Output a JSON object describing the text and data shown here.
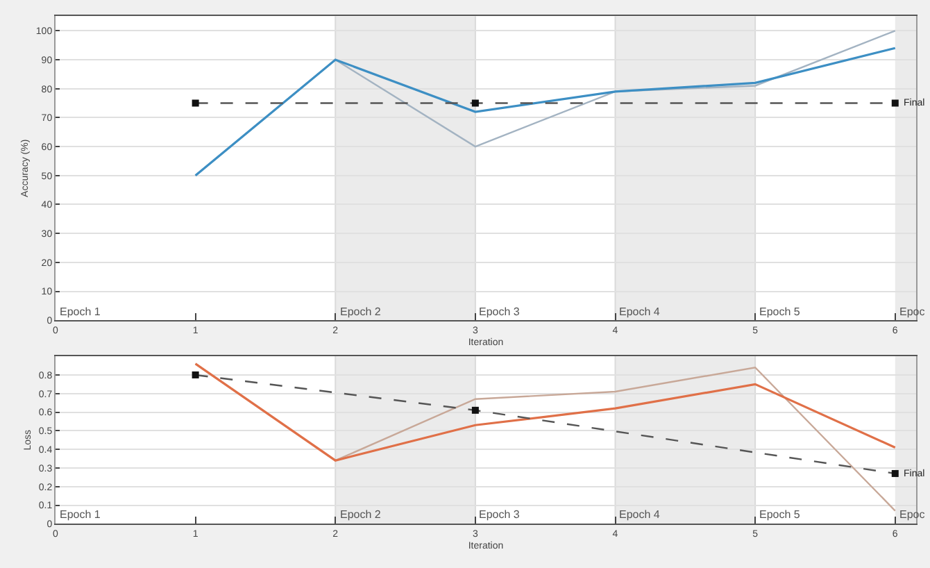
{
  "chart_data": [
    {
      "type": "line",
      "xlabel": "Iteration",
      "ylabel": "Accuracy (%)",
      "xlim": [
        0,
        6.15
      ],
      "xticks": [
        0,
        1,
        2,
        3,
        4,
        5,
        6
      ],
      "ylim": [
        0,
        105
      ],
      "yticks": [
        0,
        10,
        20,
        30,
        40,
        50,
        60,
        70,
        80,
        90,
        100
      ],
      "grid": "y",
      "series": [
        {
          "color": "#a3b3c2",
          "x": [
            1,
            2,
            3,
            4,
            5,
            6
          ],
          "values": [
            50,
            90,
            60,
            79,
            81,
            100
          ]
        },
        {
          "color": "#3d8fc4",
          "x": [
            1,
            2,
            3,
            4,
            5,
            6
          ],
          "values": [
            50,
            90,
            72,
            79,
            82,
            94
          ]
        },
        {
          "color": "#555555",
          "x": [
            1,
            3,
            6
          ],
          "values": [
            75,
            75,
            75
          ],
          "line_style": "dashed",
          "marker": "square"
        }
      ],
      "bands": [
        {
          "axis": "x",
          "from": 2,
          "to": 3,
          "color": "#ebebeb"
        },
        {
          "axis": "x",
          "from": 4,
          "to": 5,
          "color": "#ebebeb"
        },
        {
          "axis": "x",
          "from": 6,
          "to": 6.15,
          "color": "#ebebeb",
          "label": "Epoc"
        }
      ],
      "ref_lines": [
        {
          "axis": "x",
          "value": 2,
          "label": "Epoch 2",
          "color": "#dadada"
        },
        {
          "axis": "x",
          "value": 3,
          "label": "Epoch 3",
          "color": "#dadada"
        },
        {
          "axis": "x",
          "value": 4,
          "label": "Epoch 4",
          "color": "#dadada"
        },
        {
          "axis": "x",
          "value": 5,
          "label": "Epoch 5",
          "color": "#dadada"
        }
      ],
      "annotations": [
        "Epoch 1",
        {
          "text": "Final",
          "x": 6,
          "y": 75
        }
      ]
    },
    {
      "type": "line",
      "xlabel": "Iteration",
      "ylabel": "Loss",
      "xlim": [
        0,
        6.15
      ],
      "xticks": [
        0,
        1,
        2,
        3,
        4,
        5,
        6
      ],
      "ylim": [
        0,
        0.9
      ],
      "yticks": [
        0,
        0.1,
        0.2,
        0.3,
        0.4,
        0.5,
        0.6,
        0.7,
        0.8
      ],
      "grid": "y",
      "series": [
        {
          "color": "#c8a898",
          "x": [
            1,
            2,
            3,
            4,
            5,
            6
          ],
          "values": [
            0.86,
            0.34,
            0.67,
            0.71,
            0.84,
            0.07
          ]
        },
        {
          "color": "#e07048",
          "x": [
            1,
            2,
            3,
            4,
            5,
            6
          ],
          "values": [
            0.86,
            0.34,
            0.53,
            0.62,
            0.75,
            0.41
          ]
        },
        {
          "color": "#555555",
          "x": [
            1,
            3,
            6
          ],
          "values": [
            0.8,
            0.61,
            0.27
          ],
          "line_style": "dashed",
          "marker": "square"
        }
      ],
      "bands": [
        {
          "axis": "x",
          "from": 2,
          "to": 3,
          "color": "#ebebeb"
        },
        {
          "axis": "x",
          "from": 4,
          "to": 5,
          "color": "#ebebeb"
        },
        {
          "axis": "x",
          "from": 6,
          "to": 6.15,
          "color": "#ebebeb",
          "label": "Epoc"
        }
      ],
      "ref_lines": [
        {
          "axis": "x",
          "value": 2,
          "label": "Epoch 2",
          "color": "#dadada"
        },
        {
          "axis": "x",
          "value": 3,
          "label": "Epoch 3",
          "color": "#dadada"
        },
        {
          "axis": "x",
          "value": 4,
          "label": "Epoch 4",
          "color": "#dadada"
        },
        {
          "axis": "x",
          "value": 5,
          "label": "Epoch 5",
          "color": "#dadada"
        }
      ],
      "annotations": [
        "Epoch 1",
        {
          "text": "Final",
          "x": 6,
          "y": 0.27
        }
      ]
    }
  ]
}
